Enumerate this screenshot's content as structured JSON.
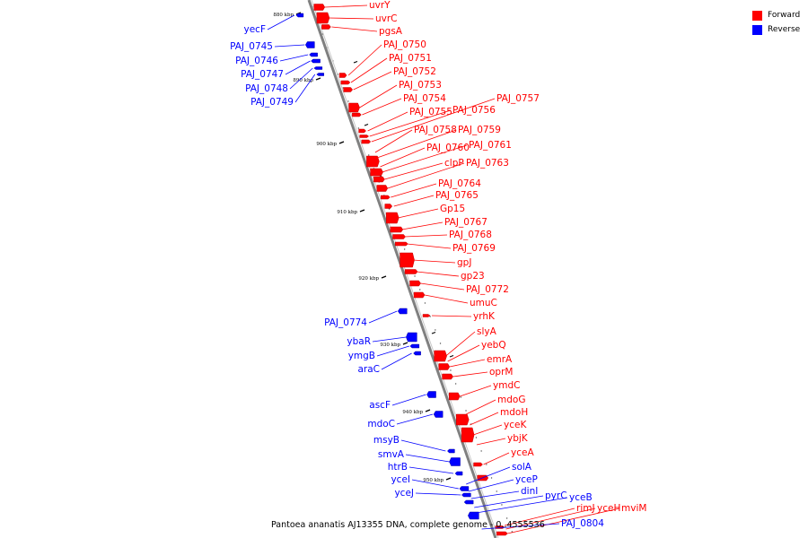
{
  "diagram": {
    "caption": "Pantoea ananatis AJ13355 DNA, complete genome - 0..4555536",
    "colors": {
      "forward": "#ff0000",
      "reverse": "#0000ff",
      "axis": "#808080"
    },
    "legend": [
      {
        "key": "forward",
        "label": "Forward",
        "color": "#ff0000"
      },
      {
        "key": "reverse",
        "label": "Reverse",
        "color": "#0000ff"
      }
    ],
    "tick_labels": [
      "880 kbp",
      "890 kbp",
      "900 kbp",
      "910 kbp",
      "920 kbp",
      "930 kbp",
      "940 kbp",
      "950 kbp"
    ],
    "forward_genes": [
      "uvrY",
      "uvrC",
      "pgsA",
      "PAJ_0750",
      "PAJ_0751",
      "PAJ_0752",
      "PAJ_0753",
      "PAJ_0754",
      "PAJ_0755",
      "PAJ_0756",
      "PAJ_0757",
      "PAJ_0758",
      "PAJ_0759",
      "PAJ_0760",
      "PAJ_0761",
      "clpP",
      "PAJ_0763",
      "PAJ_0764",
      "PAJ_0765",
      "Gp15",
      "PAJ_0767",
      "PAJ_0768",
      "PAJ_0769",
      "gpJ",
      "gp23",
      "PAJ_0772",
      "umuC",
      "yrhK",
      "slyA",
      "yebQ",
      "emrA",
      "oprM",
      "ymdC",
      "mdoG",
      "mdoH",
      "yceK",
      "ybjK",
      "yceA",
      "rimJ",
      "yceH",
      "mviM"
    ],
    "reverse_genes": [
      "yecF",
      "PAJ_0745",
      "PAJ_0746",
      "PAJ_0747",
      "PAJ_0748",
      "PAJ_0749",
      "PAJ_0774",
      "ybaR",
      "ymgB",
      "araC",
      "ascF",
      "mdoC",
      "msyB",
      "smvA",
      "htrB",
      "yceI",
      "yceJ",
      "solA",
      "yceP",
      "dinI",
      "pyrC",
      "yceB",
      "PAJ_0804"
    ]
  }
}
